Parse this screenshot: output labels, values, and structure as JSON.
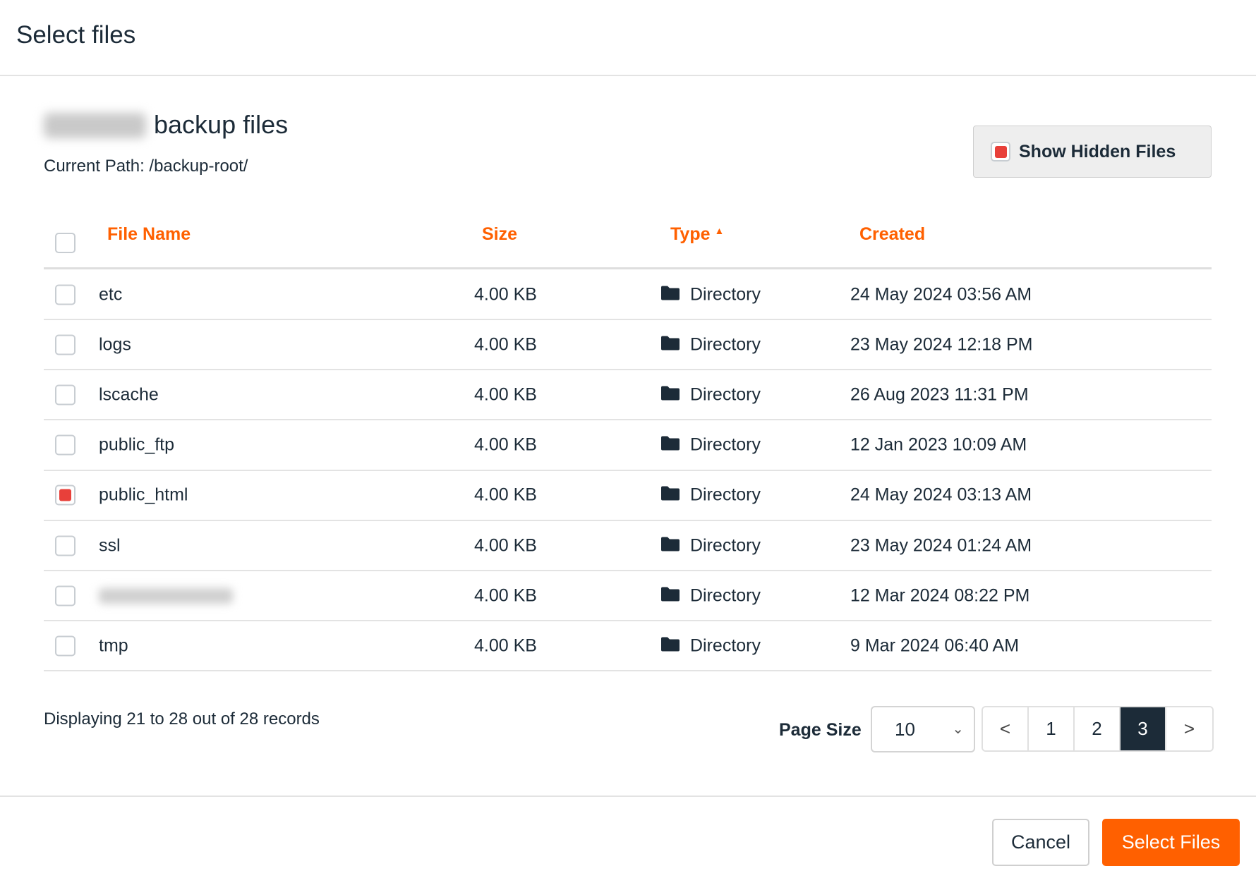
{
  "dialog": {
    "title": "Select files"
  },
  "header": {
    "subtitle": "backup files",
    "current_path": "Current Path: /backup-root/"
  },
  "show_hidden": {
    "label": "Show Hidden Files",
    "checked": true
  },
  "table": {
    "columns": [
      "File Name",
      "Size",
      "Type",
      "Created"
    ],
    "sort": {
      "column": "Type",
      "direction": "ascending"
    },
    "rows": [
      {
        "name": "etc",
        "size": "4.00 KB",
        "type": "Directory",
        "created": "24 May 2024 03:56 AM",
        "checked": false
      },
      {
        "name": "logs",
        "size": "4.00 KB",
        "type": "Directory",
        "created": "23 May 2024 12:18 PM",
        "checked": false
      },
      {
        "name": "lscache",
        "size": "4.00 KB",
        "type": "Directory",
        "created": "26 Aug 2023 11:31 PM",
        "checked": false
      },
      {
        "name": "public_ftp",
        "size": "4.00 KB",
        "type": "Directory",
        "created": "12 Jan 2023 10:09 AM",
        "checked": false
      },
      {
        "name": "public_html",
        "size": "4.00 KB",
        "type": "Directory",
        "created": "24 May 2024 03:13 AM",
        "checked": true
      },
      {
        "name": "ssl",
        "size": "4.00 KB",
        "type": "Directory",
        "created": "23 May 2024 01:24 AM",
        "checked": false
      },
      {
        "name": "",
        "size": "4.00 KB",
        "type": "Directory",
        "created": "12 Mar 2024 08:22 PM",
        "checked": false
      },
      {
        "name": "tmp",
        "size": "4.00 KB",
        "type": "Directory",
        "created": "9 Mar 2024 06:40 AM",
        "checked": false
      }
    ]
  },
  "footer_info": {
    "displaying": "Displaying 21 to 28 out of 28 records"
  },
  "pagination": {
    "page_size_label": "Page Size",
    "page_size": "10",
    "prev": "<",
    "pages": [
      "1",
      "2",
      "3"
    ],
    "current": "3",
    "next": ">"
  },
  "actions": {
    "cancel": "Cancel",
    "select": "Select Files"
  },
  "colors": {
    "accent": "#ff6000",
    "dark": "#1c2b38",
    "checked": "#e8403a"
  }
}
